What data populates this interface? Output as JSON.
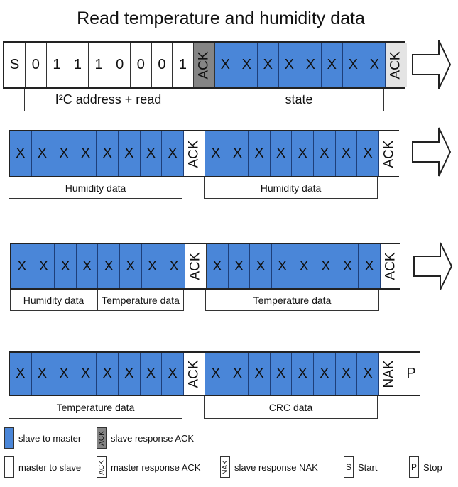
{
  "title": "Read temperature and humidity data",
  "colors": {
    "slave_to_master": "#4a86d8",
    "slave_ack": "#858585",
    "light_ack": "#e4e4e4",
    "master_to_slave": "#ffffff"
  },
  "rows": [
    {
      "cells": [
        {
          "text": "S",
          "type": "white"
        },
        {
          "text": "0",
          "type": "white"
        },
        {
          "text": "1",
          "type": "white"
        },
        {
          "text": "1",
          "type": "white"
        },
        {
          "text": "1",
          "type": "white"
        },
        {
          "text": "0",
          "type": "white"
        },
        {
          "text": "0",
          "type": "white"
        },
        {
          "text": "0",
          "type": "white"
        },
        {
          "text": "1",
          "type": "white"
        },
        {
          "text": "ACK",
          "type": "dark",
          "rotated": true
        },
        {
          "text": "X",
          "type": "blue"
        },
        {
          "text": "X",
          "type": "blue"
        },
        {
          "text": "X",
          "type": "blue"
        },
        {
          "text": "X",
          "type": "blue"
        },
        {
          "text": "X",
          "type": "blue"
        },
        {
          "text": "X",
          "type": "blue"
        },
        {
          "text": "X",
          "type": "blue"
        },
        {
          "text": "X",
          "type": "blue"
        },
        {
          "text": "ACK",
          "type": "light",
          "rotated": true
        }
      ],
      "labels": [
        "I²C address + read",
        "state"
      ],
      "arrow": true
    },
    {
      "cells": [
        {
          "text": "X",
          "type": "blue"
        },
        {
          "text": "X",
          "type": "blue"
        },
        {
          "text": "X",
          "type": "blue"
        },
        {
          "text": "X",
          "type": "blue"
        },
        {
          "text": "X",
          "type": "blue"
        },
        {
          "text": "X",
          "type": "blue"
        },
        {
          "text": "X",
          "type": "blue"
        },
        {
          "text": "X",
          "type": "blue"
        },
        {
          "text": "ACK",
          "type": "white",
          "rotated": true
        },
        {
          "text": "X",
          "type": "blue"
        },
        {
          "text": "X",
          "type": "blue"
        },
        {
          "text": "X",
          "type": "blue"
        },
        {
          "text": "X",
          "type": "blue"
        },
        {
          "text": "X",
          "type": "blue"
        },
        {
          "text": "X",
          "type": "blue"
        },
        {
          "text": "X",
          "type": "blue"
        },
        {
          "text": "X",
          "type": "blue"
        },
        {
          "text": "ACK",
          "type": "white",
          "rotated": true
        }
      ],
      "labels": [
        "Humidity data",
        "Humidity data"
      ],
      "arrow": true
    },
    {
      "cells": [
        {
          "text": "X",
          "type": "blue"
        },
        {
          "text": "X",
          "type": "blue"
        },
        {
          "text": "X",
          "type": "blue"
        },
        {
          "text": "X",
          "type": "blue"
        },
        {
          "text": "X",
          "type": "blue"
        },
        {
          "text": "X",
          "type": "blue"
        },
        {
          "text": "X",
          "type": "blue"
        },
        {
          "text": "X",
          "type": "blue"
        },
        {
          "text": "ACK",
          "type": "white",
          "rotated": true
        },
        {
          "text": "X",
          "type": "blue"
        },
        {
          "text": "X",
          "type": "blue"
        },
        {
          "text": "X",
          "type": "blue"
        },
        {
          "text": "X",
          "type": "blue"
        },
        {
          "text": "X",
          "type": "blue"
        },
        {
          "text": "X",
          "type": "blue"
        },
        {
          "text": "X",
          "type": "blue"
        },
        {
          "text": "X",
          "type": "blue"
        },
        {
          "text": "ACK",
          "type": "white",
          "rotated": true
        }
      ],
      "labels": [
        "Humidity data",
        "Temperature data",
        "Temperature data"
      ],
      "arrow": true
    },
    {
      "cells": [
        {
          "text": "X",
          "type": "blue"
        },
        {
          "text": "X",
          "type": "blue"
        },
        {
          "text": "X",
          "type": "blue"
        },
        {
          "text": "X",
          "type": "blue"
        },
        {
          "text": "X",
          "type": "blue"
        },
        {
          "text": "X",
          "type": "blue"
        },
        {
          "text": "X",
          "type": "blue"
        },
        {
          "text": "X",
          "type": "blue"
        },
        {
          "text": "ACK",
          "type": "white",
          "rotated": true
        },
        {
          "text": "X",
          "type": "blue"
        },
        {
          "text": "X",
          "type": "blue"
        },
        {
          "text": "X",
          "type": "blue"
        },
        {
          "text": "X",
          "type": "blue"
        },
        {
          "text": "X",
          "type": "blue"
        },
        {
          "text": "X",
          "type": "blue"
        },
        {
          "text": "X",
          "type": "blue"
        },
        {
          "text": "X",
          "type": "blue"
        },
        {
          "text": "NAK",
          "type": "white",
          "rotated": true
        },
        {
          "text": "P",
          "type": "white"
        }
      ],
      "labels": [
        "Temperature data",
        "CRC data"
      ],
      "arrow": false
    }
  ],
  "legend": [
    {
      "swatch": "blue",
      "swatch_text": "",
      "label": "slave to master"
    },
    {
      "swatch": "dark",
      "swatch_text": "ACK",
      "label": "slave response ACK"
    },
    {
      "swatch": "white",
      "swatch_text": "",
      "label": "master to slave"
    },
    {
      "swatch": "white",
      "swatch_text": "ACK",
      "label": "master response ACK"
    },
    {
      "swatch": "white",
      "swatch_text": "NAK",
      "label": "slave response NAK"
    },
    {
      "swatch": "white",
      "swatch_text": "S",
      "label": "Start"
    },
    {
      "swatch": "white",
      "swatch_text": "P",
      "label": "Stop"
    }
  ]
}
